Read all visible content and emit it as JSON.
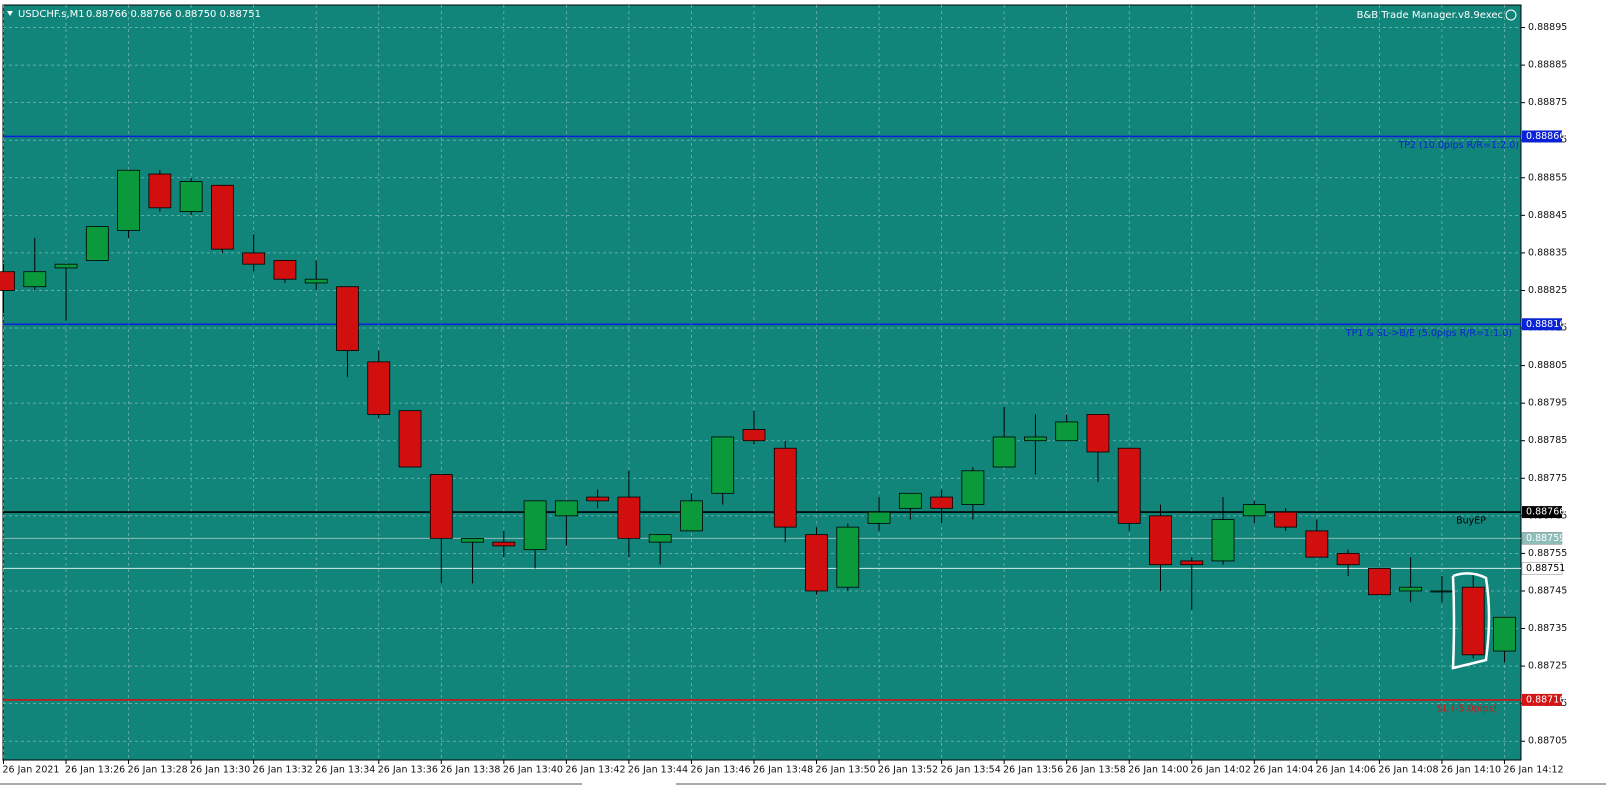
{
  "chart_data": {
    "type": "candlestick",
    "title": "USDCHF.s,M1",
    "subtitle": "0.88766 0.88766 0.88750 0.88751",
    "indicator": "B&B Trade Manager.v8.9exec",
    "categories": [
      "26 Jan 2021",
      null,
      "26 Jan 13:26",
      null,
      "26 Jan 13:28",
      null,
      "26 Jan 13:30",
      null,
      "26 Jan 13:32",
      null,
      "26 Jan 13:34",
      null,
      "26 Jan 13:36",
      null,
      "26 Jan 13:38",
      null,
      "26 Jan 13:40",
      null,
      "26 Jan 13:42",
      null,
      "26 Jan 13:44",
      null,
      "26 Jan 13:46",
      null,
      "26 Jan 13:48",
      null,
      "26 Jan 13:50",
      null,
      "26 Jan 13:52",
      null,
      "26 Jan 13:54",
      null,
      "26 Jan 13:56",
      null,
      "26 Jan 13:58",
      null,
      "26 Jan 14:00",
      null,
      "26 Jan 14:02",
      null,
      "26 Jan 14:04",
      null,
      "26 Jan 14:06",
      null,
      "26 Jan 14:08",
      null,
      "26 Jan 14:10",
      null,
      "26 Jan 14:12"
    ],
    "open": [
      0.8883,
      0.88826,
      0.88831,
      0.88833,
      0.88841,
      0.88856,
      0.88846,
      0.88853,
      0.88835,
      0.88833,
      0.88827,
      0.88826,
      0.88806,
      0.88793,
      0.88776,
      0.88758,
      0.88758,
      0.88756,
      0.88765,
      0.8877,
      0.8877,
      0.88758,
      0.88761,
      0.88771,
      0.88788,
      0.88783,
      0.8876,
      0.88746,
      0.88763,
      0.88767,
      0.8877,
      0.88768,
      0.88778,
      0.88785,
      0.88785,
      0.88792,
      0.88783,
      0.88765,
      0.88753,
      0.88753,
      0.88765,
      0.88766,
      0.88761,
      0.88755,
      0.88751,
      0.88745,
      0.88745,
      0.88746,
      0.88729
    ],
    "high": [
      0.88832,
      0.88839,
      0.88832,
      0.88842,
      0.88857,
      0.88857,
      0.88855,
      0.88853,
      0.8884,
      0.88833,
      0.88833,
      0.88826,
      0.88809,
      0.88793,
      0.88776,
      0.88759,
      0.88761,
      0.88769,
      0.88769,
      0.88772,
      0.88777,
      0.8876,
      0.88771,
      0.88786,
      0.88793,
      0.88785,
      0.88762,
      0.88763,
      0.8877,
      0.88771,
      0.88772,
      0.88778,
      0.88794,
      0.88792,
      0.88792,
      0.88792,
      0.88783,
      0.88768,
      0.88754,
      0.8877,
      0.88769,
      0.88767,
      0.88764,
      0.88756,
      0.88751,
      0.88754,
      0.88749,
      0.8875,
      0.88738
    ],
    "low": [
      0.88819,
      0.88825,
      0.88817,
      0.88833,
      0.88839,
      0.88846,
      0.88845,
      0.88835,
      0.8883,
      0.88827,
      0.88825,
      0.88802,
      0.88791,
      0.88778,
      0.88747,
      0.88747,
      0.88754,
      0.88751,
      0.88757,
      0.88767,
      0.88754,
      0.88752,
      0.88761,
      0.88768,
      0.88784,
      0.88758,
      0.88744,
      0.88745,
      0.88761,
      0.88764,
      0.88763,
      0.88764,
      0.88778,
      0.88776,
      0.88785,
      0.88774,
      0.88761,
      0.88745,
      0.8874,
      0.88752,
      0.88763,
      0.88761,
      0.88754,
      0.88749,
      0.88744,
      0.88742,
      0.88742,
      0.88727,
      0.88726
    ],
    "close": [
      0.88825,
      0.8883,
      0.88832,
      0.88842,
      0.88857,
      0.88847,
      0.88854,
      0.88836,
      0.88832,
      0.88828,
      0.88828,
      0.88809,
      0.88792,
      0.88778,
      0.88759,
      0.88759,
      0.88757,
      0.88769,
      0.88769,
      0.88769,
      0.88759,
      0.8876,
      0.88769,
      0.88786,
      0.88785,
      0.88762,
      0.88745,
      0.88762,
      0.88766,
      0.88771,
      0.88767,
      0.88777,
      0.88786,
      0.88786,
      0.8879,
      0.88782,
      0.88763,
      0.88752,
      0.88752,
      0.88764,
      0.88768,
      0.88762,
      0.88754,
      0.88752,
      0.88744,
      0.88746,
      0.88745,
      0.88728,
      0.88738
    ],
    "up_color": "#0a9a3c",
    "down_color": "#d10f0f",
    "background": "#12857b",
    "ylim": [
      0.887,
      0.88901
    ],
    "yticks": [
      0.88705,
      0.88715,
      0.88725,
      0.88735,
      0.88745,
      0.88755,
      0.88765,
      0.88775,
      0.88785,
      0.88795,
      0.88805,
      0.88815,
      0.88825,
      0.88835,
      0.88845,
      0.88855,
      0.88865,
      0.88875,
      0.88885,
      0.88895
    ],
    "grid": true,
    "levels": [
      {
        "label": "TP2 (10.0pips R/R=1:2.0)",
        "value": 0.88866,
        "color": "#0a22d6"
      },
      {
        "label": "TP1 & SL->B/E (5.0pips R/R=1:1.0)",
        "value": 0.88816,
        "color": "#0a22d6"
      },
      {
        "label": "BuyEP",
        "value": 0.88766,
        "color": "#000000"
      },
      {
        "label": "SL (-5.0pips)",
        "value": 0.88716,
        "color": "#d11515"
      }
    ],
    "price_lines": [
      {
        "value": 0.88759,
        "color": "#8fbdb8"
      },
      {
        "value": 0.88751,
        "color": "#d8ecea"
      }
    ]
  }
}
